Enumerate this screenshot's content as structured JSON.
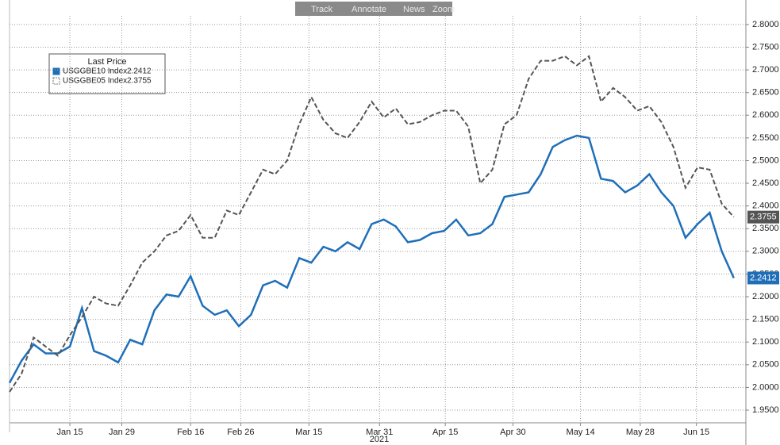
{
  "toolbar": [
    "Track",
    "Annotate",
    "News",
    "Zoom"
  ],
  "chart_data": {
    "type": "line",
    "legend_title": "Last Price",
    "x_year_label": "2021",
    "x": [
      0,
      2,
      4,
      6,
      8,
      10,
      12,
      14,
      16,
      18,
      20,
      22,
      24,
      26,
      28,
      30,
      32,
      34,
      36,
      38,
      40,
      42,
      44,
      46,
      48,
      50,
      52,
      54,
      56,
      58,
      60,
      62,
      64,
      66,
      68,
      70,
      72,
      74,
      76,
      78,
      80,
      82,
      84,
      86,
      88,
      90,
      92,
      94,
      96,
      98,
      100,
      102,
      104,
      106,
      108,
      110,
      112,
      114,
      116,
      118,
      120
    ],
    "xlim": [
      0,
      122
    ],
    "xticks": [
      {
        "value": 10,
        "label": "Jan 15"
      },
      {
        "value": 18.6,
        "label": "Jan 29"
      },
      {
        "value": 30,
        "label": "Feb 16"
      },
      {
        "value": 38.3,
        "label": "Feb 26"
      },
      {
        "value": 49.6,
        "label": "Mar 15"
      },
      {
        "value": 61.3,
        "label": "Mar 31"
      },
      {
        "value": 72.2,
        "label": "Apr 15"
      },
      {
        "value": 83.4,
        "label": "Apr 30"
      },
      {
        "value": 94.6,
        "label": "May 14"
      },
      {
        "value": 104.5,
        "label": "May 28"
      },
      {
        "value": 113.8,
        "label": "Jun 15"
      }
    ],
    "ylim": [
      1.922,
      2.854
    ],
    "yticks": [
      {
        "value": 1.95,
        "label": "1.9500"
      },
      {
        "value": 2.0,
        "label": "2.0000"
      },
      {
        "value": 2.05,
        "label": "2.0500"
      },
      {
        "value": 2.1,
        "label": "2.1000"
      },
      {
        "value": 2.15,
        "label": "2.1500"
      },
      {
        "value": 2.2,
        "label": "2.2000"
      },
      {
        "value": 2.25,
        "label": "2.2500"
      },
      {
        "value": 2.3,
        "label": "2.3000"
      },
      {
        "value": 2.35,
        "label": "2.3500"
      },
      {
        "value": 2.4,
        "label": "2.4000"
      },
      {
        "value": 2.45,
        "label": "2.4500"
      },
      {
        "value": 2.5,
        "label": "2.5000"
      },
      {
        "value": 2.55,
        "label": "2.5500"
      },
      {
        "value": 2.6,
        "label": "2.6000"
      },
      {
        "value": 2.65,
        "label": "2.6500"
      },
      {
        "value": 2.7,
        "label": "2.7000"
      },
      {
        "value": 2.75,
        "label": "2.7500"
      },
      {
        "value": 2.8,
        "label": "2.8000"
      }
    ],
    "grid": true,
    "series": [
      {
        "name": "USGGBE10 Index",
        "color": "#1f6fb8",
        "dashed": false,
        "values": [
          2.01,
          2.059,
          2.095,
          2.075,
          2.075,
          2.09,
          2.175,
          2.08,
          2.07,
          2.055,
          2.105,
          2.095,
          2.17,
          2.205,
          2.2,
          2.245,
          2.18,
          2.16,
          2.17,
          2.135,
          2.16,
          2.225,
          2.235,
          2.22,
          2.285,
          2.275,
          2.31,
          2.3,
          2.32,
          2.305,
          2.36,
          2.37,
          2.355,
          2.32,
          2.325,
          2.34,
          2.345,
          2.37,
          2.335,
          2.34,
          2.36,
          2.42,
          2.425,
          2.43,
          2.47,
          2.53,
          2.545,
          2.555,
          2.55,
          2.46,
          2.455,
          2.43,
          2.445,
          2.47,
          2.43,
          2.4,
          2.33,
          2.36,
          2.385,
          2.3,
          2.2412
        ]
      },
      {
        "name": "USGGBE05 Index",
        "color": "#555555",
        "dashed": true,
        "values": [
          1.99,
          2.03,
          2.11,
          2.09,
          2.07,
          2.115,
          2.155,
          2.2,
          2.185,
          2.18,
          2.225,
          2.275,
          2.3,
          2.335,
          2.345,
          2.38,
          2.33,
          2.33,
          2.39,
          2.38,
          2.43,
          2.48,
          2.47,
          2.5,
          2.58,
          2.64,
          2.59,
          2.56,
          2.55,
          2.585,
          2.63,
          2.595,
          2.615,
          2.58,
          2.585,
          2.6,
          2.61,
          2.61,
          2.575,
          2.45,
          2.48,
          2.58,
          2.6,
          2.68,
          2.72,
          2.72,
          2.73,
          2.71,
          2.73,
          2.63,
          2.66,
          2.64,
          2.61,
          2.62,
          2.585,
          2.53,
          2.44,
          2.485,
          2.48,
          2.405,
          2.3755
        ]
      }
    ]
  }
}
